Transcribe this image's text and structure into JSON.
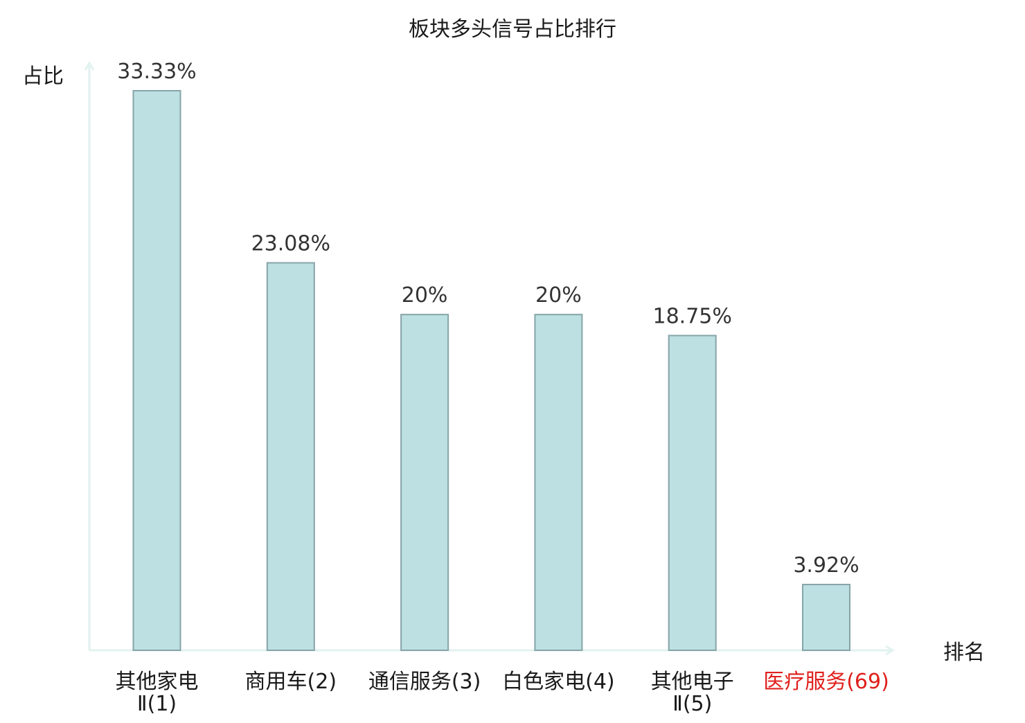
{
  "chart_data": {
    "type": "bar",
    "title": "板块多头信号占比排行",
    "ylabel": "占比",
    "xlabel": "排名",
    "categories": [
      {
        "lines": [
          "其他家电",
          "Ⅱ(1)"
        ],
        "highlight": false
      },
      {
        "lines": [
          "商用车(2)"
        ],
        "highlight": false
      },
      {
        "lines": [
          "通信服务(3)"
        ],
        "highlight": false
      },
      {
        "lines": [
          "白色家电(4)"
        ],
        "highlight": false
      },
      {
        "lines": [
          "其他电子",
          "Ⅱ(5)"
        ],
        "highlight": false
      },
      {
        "lines": [
          "医疗服务(69)"
        ],
        "highlight": true
      }
    ],
    "values": [
      33.33,
      23.08,
      20,
      20,
      18.75,
      3.92
    ],
    "value_labels": [
      "33.33%",
      "23.08%",
      "20%",
      "20%",
      "18.75%",
      "3.92%"
    ],
    "ylim": [
      0,
      33.33
    ],
    "grid": false,
    "colors": {
      "bar_fill": "#bde0e2",
      "bar_stroke": "#86a4a8",
      "axis": "#e2f2ef",
      "text": "#333333",
      "highlight_text": "#e0201c"
    }
  }
}
